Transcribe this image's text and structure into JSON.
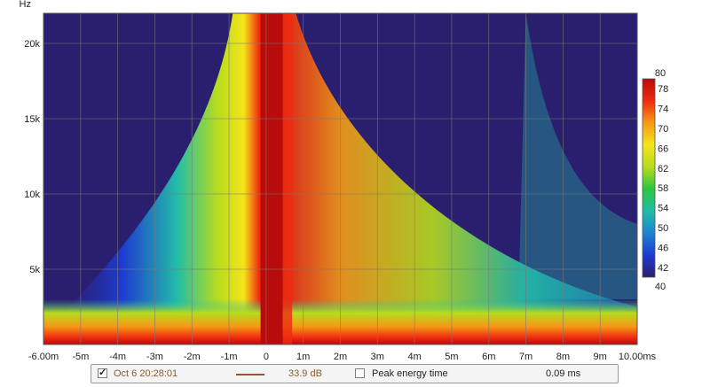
{
  "chart_data": {
    "type": "heatmap",
    "ylabel": "Hz",
    "x_ticks": [
      "-6.00m",
      "-5m",
      "-4m",
      "-3m",
      "-2m",
      "-1m",
      "0",
      "1m",
      "2m",
      "3m",
      "4m",
      "5m",
      "6m",
      "7m",
      "8m",
      "9m",
      "10.00ms"
    ],
    "x_values_ms": [
      -6,
      -5,
      -4,
      -3,
      -2,
      -1,
      0,
      1,
      2,
      3,
      4,
      5,
      6,
      7,
      8,
      9,
      10
    ],
    "xlim_ms": [
      -6,
      10
    ],
    "y_ticks": [
      "5k",
      "10k",
      "15k",
      "20k"
    ],
    "y_values_hz": [
      5000,
      10000,
      15000,
      20000
    ],
    "ylim_hz": [
      0,
      22000
    ],
    "colorbar": {
      "min_label": "40",
      "max_label": "80",
      "ticks": [
        "78",
        "74",
        "70",
        "66",
        "62",
        "58",
        "54",
        "50",
        "46",
        "42"
      ],
      "range_db": [
        40,
        80
      ],
      "colors": [
        "#2a1f6e",
        "#1e3ad0",
        "#1f83cf",
        "#22bca8",
        "#2bc53f",
        "#b6dc1e",
        "#f5e41a",
        "#f59a16",
        "#ef2a10",
        "#b80b0b"
      ]
    },
    "grid": true,
    "peak_energy_time_ms": 0.09
  },
  "legend": {
    "series_label": "Oct 6 20:28:01",
    "series_color": "#a0522d",
    "series_value": "33.9 dB",
    "peak_label": "Peak energy time",
    "peak_value": "0.09 ms"
  }
}
